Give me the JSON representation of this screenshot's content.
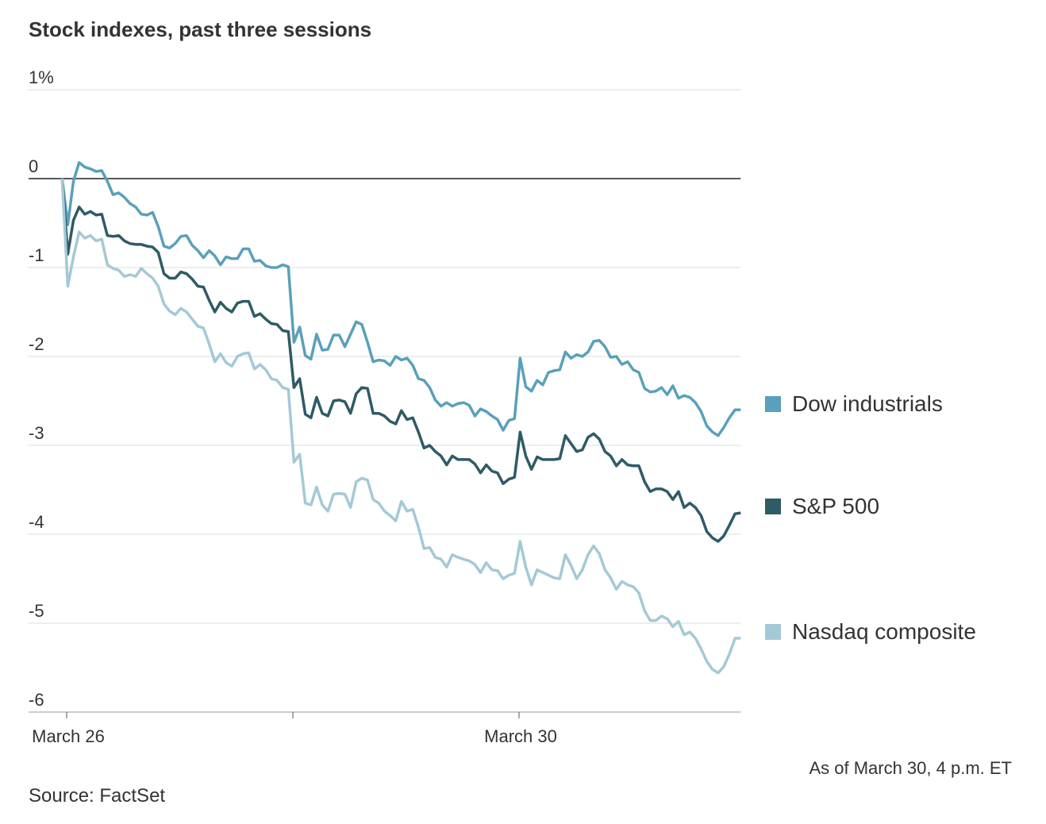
{
  "chart_data": {
    "type": "line",
    "title": "Stock indexes, past three sessions",
    "note": "As of March 30, 4 p.m. ET",
    "source": "Source: FactSet",
    "x": [
      -0.02,
      0.005,
      0.03,
      0.055,
      0.08,
      0.105,
      0.13,
      0.155,
      0.18,
      0.205,
      0.23,
      0.255,
      0.28,
      0.305,
      0.33,
      0.355,
      0.38,
      0.405,
      0.43,
      0.455,
      0.48,
      0.505,
      0.53,
      0.555,
      0.58,
      0.605,
      0.63,
      0.655,
      0.68,
      0.705,
      0.73,
      0.755,
      0.78,
      0.805,
      0.83,
      0.855,
      0.88,
      0.905,
      0.93,
      0.955,
      0.98,
      1.005,
      1.03,
      1.055,
      1.08,
      1.105,
      1.13,
      1.155,
      1.18,
      1.205,
      1.23,
      1.255,
      1.28,
      1.305,
      1.33,
      1.355,
      1.38,
      1.405,
      1.43,
      1.455,
      1.48,
      1.505,
      1.53,
      1.555,
      1.58,
      1.605,
      1.63,
      1.655,
      1.68,
      1.705,
      1.73,
      1.755,
      1.78,
      1.805,
      1.83,
      1.855,
      1.88,
      1.905,
      1.93,
      1.955,
      1.98,
      2.005,
      2.03,
      2.055,
      2.08,
      2.105,
      2.13,
      2.155,
      2.18,
      2.205,
      2.23,
      2.255,
      2.28,
      2.305,
      2.33,
      2.355,
      2.38,
      2.405,
      2.43,
      2.455,
      2.48,
      2.505,
      2.53,
      2.555,
      2.58,
      2.605,
      2.63,
      2.655,
      2.68,
      2.705,
      2.73,
      2.755,
      2.78,
      2.805,
      2.83,
      2.855,
      2.88,
      2.905,
      2.93,
      2.955,
      2.98
    ],
    "xlim": [
      -0.02,
      2.98
    ],
    "xticks": [
      {
        "value": 0,
        "label": "March 26"
      },
      {
        "value": 2,
        "label": "March 30"
      }
    ],
    "minor_xticks": [
      1
    ],
    "ylim": [
      -6,
      1
    ],
    "yticks": [
      {
        "value": 1,
        "label": "1%"
      },
      0,
      -1,
      -2,
      -3,
      -4,
      -5,
      -6
    ],
    "grid": true,
    "series": [
      {
        "name": "Dow industrials",
        "color": "#5aa0ba",
        "values": [
          0,
          -0.52,
          -0.03,
          0.18,
          0.13,
          0.11,
          0.08,
          0.09,
          -0.03,
          -0.18,
          -0.16,
          -0.21,
          -0.28,
          -0.32,
          -0.4,
          -0.41,
          -0.38,
          -0.54,
          -0.76,
          -0.78,
          -0.73,
          -0.65,
          -0.64,
          -0.75,
          -0.81,
          -0.89,
          -0.81,
          -0.87,
          -0.97,
          -0.88,
          -0.9,
          -0.9,
          -0.79,
          -0.79,
          -0.93,
          -0.92,
          -0.98,
          -1.0,
          -1.0,
          -0.97,
          -0.99,
          -1.84,
          -1.67,
          -1.99,
          -2.03,
          -1.75,
          -1.93,
          -1.92,
          -1.76,
          -1.76,
          -1.89,
          -1.75,
          -1.61,
          -1.64,
          -1.84,
          -2.06,
          -2.04,
          -2.05,
          -2.1,
          -2.0,
          -2.04,
          -2.02,
          -2.1,
          -2.25,
          -2.27,
          -2.35,
          -2.49,
          -2.56,
          -2.52,
          -2.56,
          -2.53,
          -2.52,
          -2.55,
          -2.67,
          -2.59,
          -2.62,
          -2.67,
          -2.71,
          -2.83,
          -2.72,
          -2.7,
          -2.02,
          -2.34,
          -2.39,
          -2.27,
          -2.32,
          -2.18,
          -2.16,
          -2.15,
          -1.95,
          -2.02,
          -1.98,
          -2.0,
          -1.95,
          -1.83,
          -1.82,
          -1.89,
          -2.01,
          -2.0,
          -2.09,
          -2.06,
          -2.15,
          -2.18,
          -2.36,
          -2.4,
          -2.39,
          -2.35,
          -2.43,
          -2.33,
          -2.47,
          -2.44,
          -2.46,
          -2.52,
          -2.62,
          -2.78,
          -2.85,
          -2.89,
          -2.8,
          -2.69,
          -2.6,
          -2.6
        ]
      },
      {
        "name": "S&P 500",
        "color": "#2e5b66",
        "values": [
          0,
          -0.85,
          -0.47,
          -0.32,
          -0.4,
          -0.37,
          -0.41,
          -0.4,
          -0.64,
          -0.65,
          -0.64,
          -0.7,
          -0.73,
          -0.74,
          -0.74,
          -0.76,
          -0.77,
          -0.83,
          -1.07,
          -1.12,
          -1.12,
          -1.05,
          -1.07,
          -1.13,
          -1.21,
          -1.22,
          -1.37,
          -1.5,
          -1.39,
          -1.46,
          -1.5,
          -1.4,
          -1.38,
          -1.38,
          -1.55,
          -1.52,
          -1.58,
          -1.63,
          -1.64,
          -1.71,
          -1.72,
          -2.35,
          -2.25,
          -2.65,
          -2.69,
          -2.46,
          -2.64,
          -2.67,
          -2.5,
          -2.49,
          -2.51,
          -2.64,
          -2.42,
          -2.35,
          -2.36,
          -2.64,
          -2.64,
          -2.67,
          -2.73,
          -2.76,
          -2.61,
          -2.71,
          -2.69,
          -2.85,
          -3.03,
          -3.0,
          -3.07,
          -3.12,
          -3.22,
          -3.12,
          -3.16,
          -3.16,
          -3.16,
          -3.21,
          -3.31,
          -3.22,
          -3.29,
          -3.31,
          -3.43,
          -3.38,
          -3.36,
          -2.85,
          -3.12,
          -3.27,
          -3.13,
          -3.16,
          -3.16,
          -3.16,
          -3.15,
          -2.89,
          -2.98,
          -3.07,
          -3.05,
          -2.91,
          -2.87,
          -2.93,
          -3.07,
          -3.12,
          -3.23,
          -3.16,
          -3.22,
          -3.23,
          -3.23,
          -3.41,
          -3.52,
          -3.49,
          -3.49,
          -3.52,
          -3.61,
          -3.52,
          -3.7,
          -3.65,
          -3.7,
          -3.79,
          -3.97,
          -4.04,
          -4.08,
          -4.02,
          -3.9,
          -3.77,
          -3.76
        ]
      },
      {
        "name": "Nasdaq composite",
        "color": "#a4c9d6",
        "values": [
          0,
          -1.21,
          -0.88,
          -0.6,
          -0.67,
          -0.64,
          -0.7,
          -0.68,
          -0.97,
          -1.01,
          -1.03,
          -1.1,
          -1.08,
          -1.1,
          -1.01,
          -1.07,
          -1.12,
          -1.21,
          -1.41,
          -1.49,
          -1.53,
          -1.46,
          -1.5,
          -1.58,
          -1.66,
          -1.68,
          -1.86,
          -2.06,
          -1.97,
          -2.07,
          -2.11,
          -2.0,
          -1.97,
          -1.96,
          -2.14,
          -2.09,
          -2.15,
          -2.25,
          -2.27,
          -2.35,
          -2.37,
          -3.19,
          -3.1,
          -3.65,
          -3.67,
          -3.47,
          -3.67,
          -3.74,
          -3.55,
          -3.54,
          -3.55,
          -3.7,
          -3.41,
          -3.37,
          -3.39,
          -3.61,
          -3.65,
          -3.74,
          -3.79,
          -3.85,
          -3.63,
          -3.74,
          -3.72,
          -3.92,
          -4.16,
          -4.15,
          -4.26,
          -4.28,
          -4.37,
          -4.23,
          -4.26,
          -4.28,
          -4.3,
          -4.34,
          -4.43,
          -4.32,
          -4.4,
          -4.41,
          -4.5,
          -4.46,
          -4.44,
          -4.08,
          -4.37,
          -4.57,
          -4.4,
          -4.43,
          -4.46,
          -4.49,
          -4.5,
          -4.23,
          -4.35,
          -4.5,
          -4.4,
          -4.23,
          -4.13,
          -4.22,
          -4.4,
          -4.49,
          -4.62,
          -4.53,
          -4.57,
          -4.59,
          -4.66,
          -4.86,
          -4.97,
          -4.97,
          -4.92,
          -4.95,
          -5.04,
          -4.98,
          -5.13,
          -5.1,
          -5.17,
          -5.29,
          -5.43,
          -5.52,
          -5.56,
          -5.49,
          -5.35,
          -5.17,
          -5.17
        ]
      }
    ]
  }
}
